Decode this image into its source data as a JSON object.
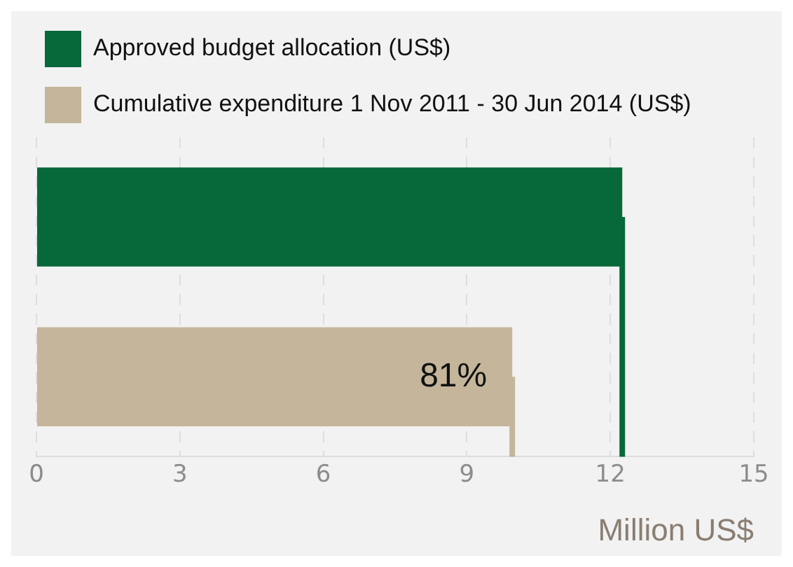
{
  "chart_data": {
    "type": "bar",
    "orientation": "horizontal",
    "xlabel": "Million US$",
    "categories": [
      null,
      null
    ],
    "series": [
      {
        "name": "Approved budget allocation (US$)",
        "color": "#076839",
        "values": [
          12.25,
          null
        ]
      },
      {
        "name": "Cumulative expenditure 1 Nov 2011 - 30 Jun 2014 (US$)",
        "color": "#c4b59b",
        "values": [
          null,
          9.95
        ]
      }
    ],
    "annotations": [
      {
        "text": "81%",
        "x": 9.95
      }
    ],
    "ref_lines": [
      {
        "axis": "x",
        "value": 12.25,
        "color": "#076839"
      },
      {
        "axis": "x",
        "value": 9.95,
        "color": "#c4b59b"
      }
    ],
    "xlim": [
      0,
      15
    ],
    "xticks": [
      0,
      3,
      6,
      9,
      12,
      15
    ],
    "grid": "x",
    "legend": "top left"
  }
}
